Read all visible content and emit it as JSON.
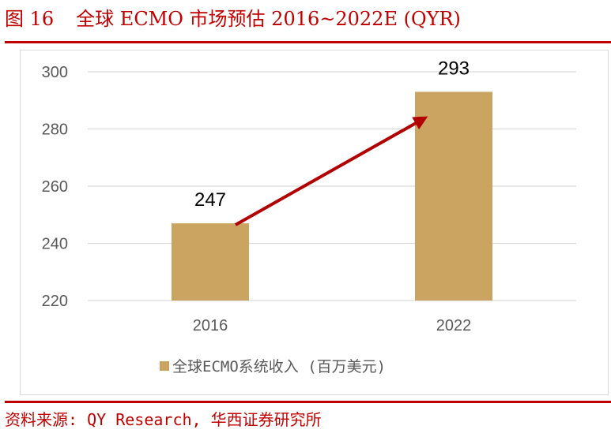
{
  "figure": {
    "number": "图 16",
    "title": "全球 ECMO 市场预估 2016~2022E (QYR)",
    "source": "资料来源: QY Research, 华西证券研究所"
  },
  "colors": {
    "accent": "#c00000",
    "bar": "#cca461",
    "arrow": "#b20000",
    "grid": "#d9d9d9",
    "tick_text": "#595959"
  },
  "chart_data": {
    "type": "bar",
    "categories": [
      "2016",
      "2022"
    ],
    "series": [
      {
        "name": "全球ECMO系统收入 (百万美元)",
        "values": [
          247,
          293
        ]
      }
    ],
    "data_labels": [
      "247",
      "293"
    ],
    "yticks": [
      220,
      240,
      260,
      280,
      300
    ],
    "ylim": [
      220,
      300
    ],
    "grid": true,
    "legend_position": "bottom",
    "annotation": "arrow from 2016 bar to 2022 bar indicating growth"
  }
}
